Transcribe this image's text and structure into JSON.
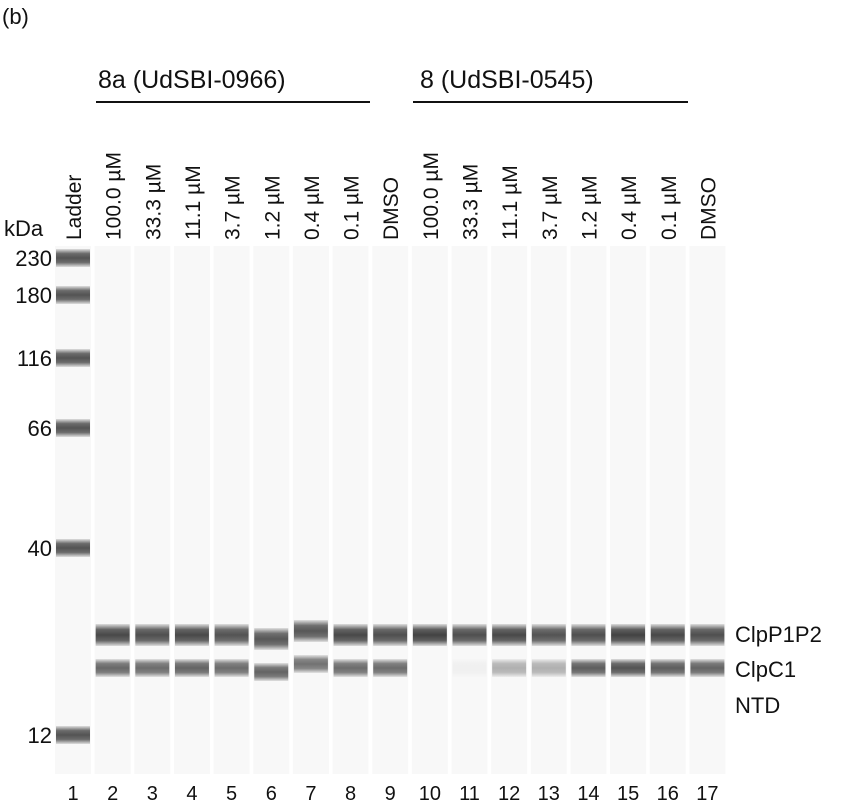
{
  "panel_label": "(b)",
  "groups": [
    {
      "label": "8a (UdSBI-0966)"
    },
    {
      "label": "8 (UdSBI-0545)"
    }
  ],
  "unit_label": "kDa",
  "lanes": [
    {
      "number": "1",
      "label": "Ladder"
    },
    {
      "number": "2",
      "label": "100.0 µM"
    },
    {
      "number": "3",
      "label": "33.3 µM"
    },
    {
      "number": "4",
      "label": "11.1 µM"
    },
    {
      "number": "5",
      "label": "3.7 µM"
    },
    {
      "number": "6",
      "label": "1.2 µM"
    },
    {
      "number": "7",
      "label": "0.4 µM"
    },
    {
      "number": "8",
      "label": "0.1 µM"
    },
    {
      "number": "9",
      "label": "DMSO"
    },
    {
      "number": "10",
      "label": "100.0 µM"
    },
    {
      "number": "11",
      "label": "33.3 µM"
    },
    {
      "number": "12",
      "label": "11.1 µM"
    },
    {
      "number": "13",
      "label": "3.7 µM"
    },
    {
      "number": "14",
      "label": "1.2 µM"
    },
    {
      "number": "15",
      "label": "0.4 µM"
    },
    {
      "number": "16",
      "label": "0.1 µM"
    },
    {
      "number": "17",
      "label": "DMSO"
    }
  ],
  "ladder_markers": [
    "230",
    "180",
    "116",
    "66",
    "40",
    "12"
  ],
  "band_labels": [
    "ClpP1P2",
    "ClpC1",
    "NTD"
  ],
  "band_intensity": {
    "ClpP1P2": [
      0,
      0.85,
      0.82,
      0.85,
      0.8,
      0.78,
      0.78,
      0.85,
      0.82,
      0.88,
      0.82,
      0.85,
      0.8,
      0.82,
      0.88,
      0.85,
      0.82
    ],
    "ClpC1": [
      0,
      0.7,
      0.68,
      0.72,
      0.68,
      0.72,
      0.65,
      0.68,
      0.68,
      0.0,
      0.04,
      0.35,
      0.35,
      0.75,
      0.8,
      0.75,
      0.72
    ]
  },
  "colors": {
    "band": "#2a2a2a",
    "lane": "#f8f8f8",
    "background": "#ffffff"
  }
}
